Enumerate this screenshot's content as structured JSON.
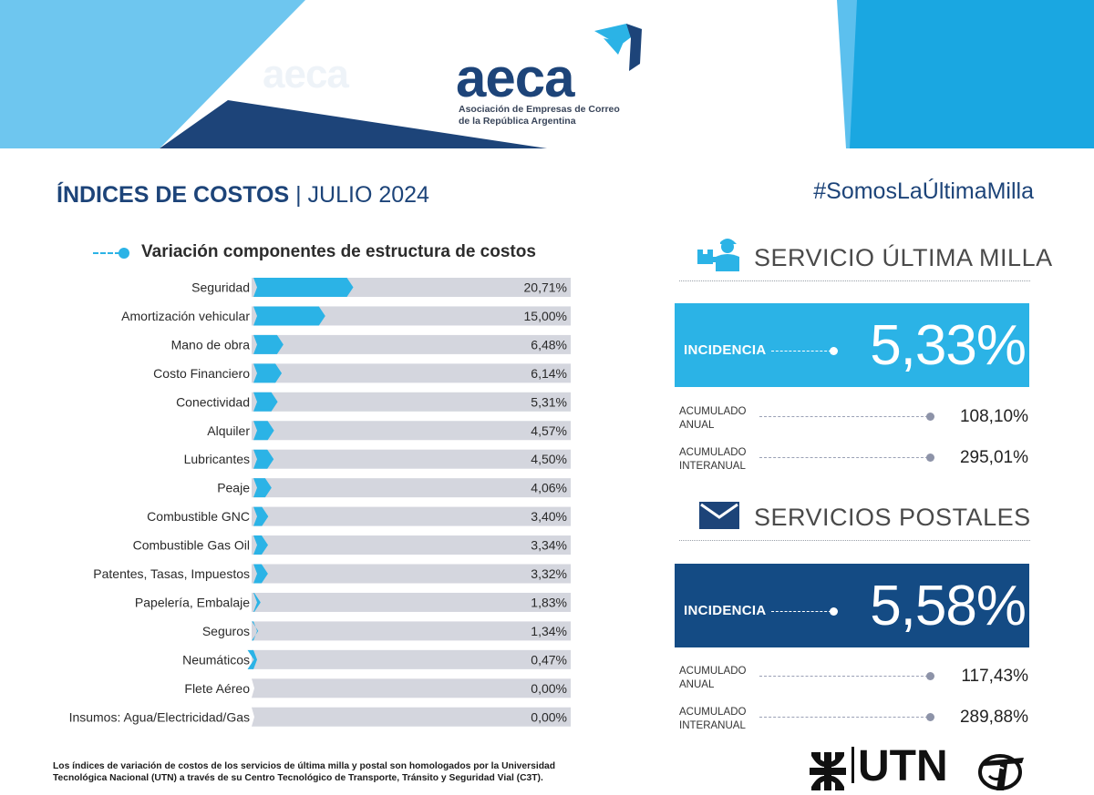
{
  "header": {
    "logo_word": "aeca",
    "logo_sub_line1": "Asociación de Empresas de Correo",
    "logo_sub_line2": "de la República Argentina",
    "ghost_word": "aeca",
    "colors": {
      "light_blue": "#2bb3e6",
      "navy": "#1d4479",
      "dark_blue": "#144b84"
    }
  },
  "title": {
    "bold": "ÍNDICES DE COSTOS",
    "separator": "|",
    "rest": "JULIO 2024"
  },
  "hashtag": "#SomosLaÚltimaMilla",
  "chart_data": {
    "type": "bar",
    "orientation": "horizontal",
    "title": "Variación componentes de estructura de costos",
    "categories": [
      "Seguridad",
      "Amortización vehicular",
      "Mano de obra",
      "Costo Financiero",
      "Conectividad",
      "Alquiler",
      "Lubricantes",
      "Peaje",
      "Combustible GNC",
      "Combustible Gas Oil",
      "Patentes, Tasas, Impuestos",
      "Papelería, Embalaje",
      "Seguros",
      "Neumáticos",
      "Flete Aéreo",
      "Insumos: Agua/Electricidad/Gas"
    ],
    "values": [
      20.71,
      15.0,
      6.48,
      6.14,
      5.31,
      4.57,
      4.5,
      4.06,
      3.4,
      3.34,
      3.32,
      1.83,
      1.34,
      0.47,
      0.0,
      0.0
    ],
    "value_labels": [
      "20,71%",
      "15,00%",
      "6,48%",
      "6,14%",
      "5,31%",
      "4,57%",
      "4,50%",
      "4,06%",
      "3,40%",
      "3,34%",
      "3,32%",
      "1,83%",
      "1,34%",
      "0,47%",
      "0,00%",
      "0,00%"
    ],
    "xlim": [
      0,
      65
    ],
    "bar_color": "#2bb3e6",
    "track_color": "#d4d6de",
    "grid": false
  },
  "ultima_milla": {
    "title": "SERVICIO ÚLTIMA MILLA",
    "icon": "delivery-person-icon",
    "incidencia_label": "INCIDENCIA",
    "incidencia_value": "5,33%",
    "acumulado_anual_label1": "ACUMULADO",
    "acumulado_anual_label2": "ANUAL",
    "acumulado_anual_value": "108,10%",
    "acumulado_interanual_label1": "ACUMULADO",
    "acumulado_interanual_label2": "INTERANUAL",
    "acumulado_interanual_value": "295,01%"
  },
  "postales": {
    "title": "SERVICIOS POSTALES",
    "icon": "envelope-icon",
    "incidencia_label": "INCIDENCIA",
    "incidencia_value": "5,58%",
    "acumulado_anual_label1": "ACUMULADO",
    "acumulado_anual_label2": "ANUAL",
    "acumulado_anual_value": "117,43%",
    "acumulado_interanual_label1": "ACUMULADO",
    "acumulado_interanual_label2": "INTERANUAL",
    "acumulado_interanual_value": "289,88%"
  },
  "footer": {
    "note_line1": "Los índices de variación de costos de los servicios de última milla y postal son homologados por la Universidad",
    "note_line2": "Tecnológica Nacional (UTN) a través de su Centro Tecnológico de Transporte, Tránsito y Seguridad Vial (C3T).",
    "utn_word": "UTN",
    "c3t_icon": "c3t-logo-icon"
  }
}
